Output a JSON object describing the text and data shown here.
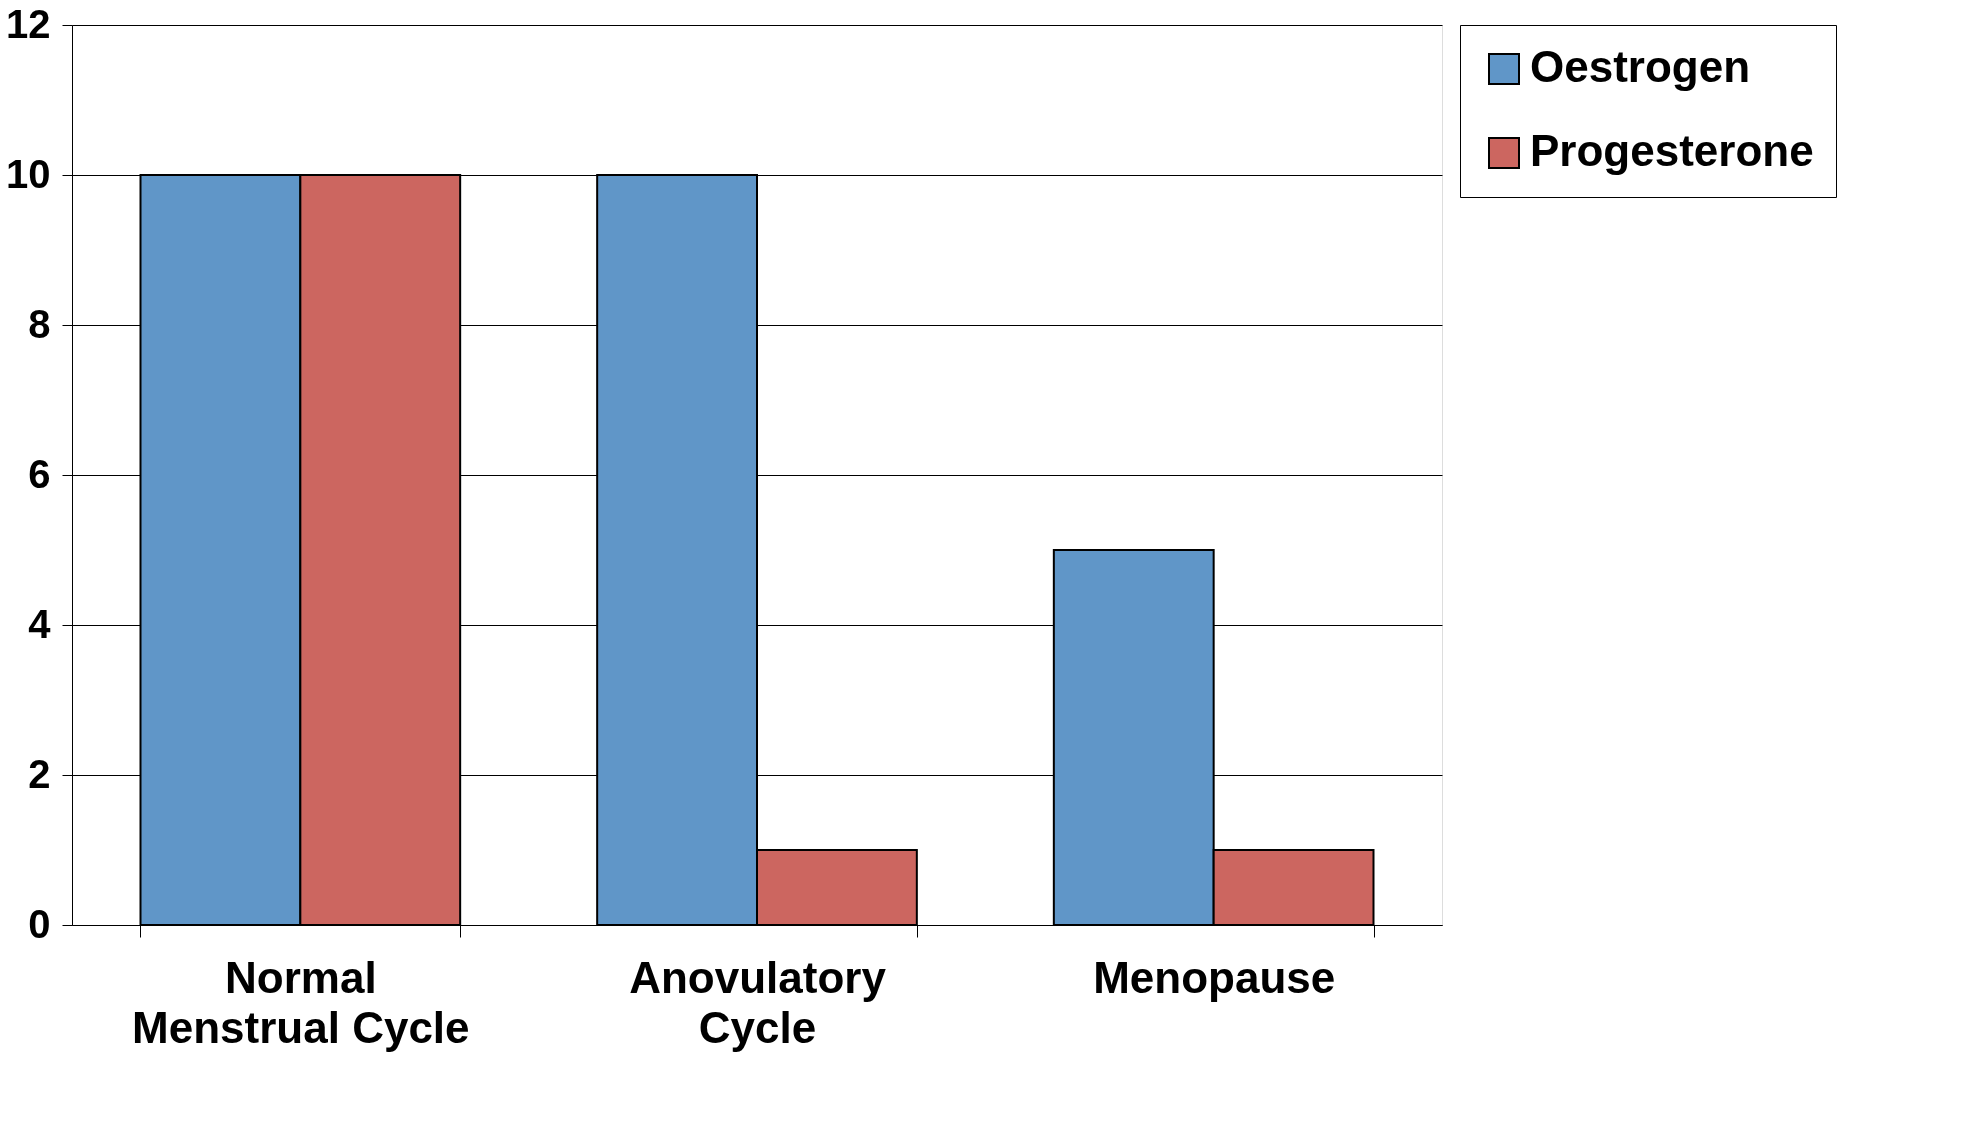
{
  "chart_data": {
    "type": "bar",
    "categories": [
      "Normal Menstrual Cycle",
      "Anovulatory Cycle",
      "Menopause"
    ],
    "series": [
      {
        "name": "Oestrogen",
        "color": "#6096c8",
        "values": [
          10,
          10,
          5
        ]
      },
      {
        "name": "Progesterone",
        "color": "#cc6660",
        "values": [
          10,
          1,
          1
        ]
      }
    ],
    "ylim": [
      0,
      12
    ],
    "yticks": [
      0,
      2,
      4,
      6,
      8,
      10,
      12
    ],
    "grid": "y",
    "legend": "top right"
  }
}
